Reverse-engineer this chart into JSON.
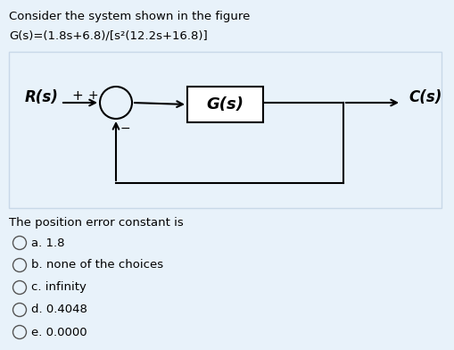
{
  "title_line1": "Consider the system shown in the figure",
  "title_line2": "G(s)=(1.8s+6.8)/[s²(12.2s+16.8)]",
  "bg_color": "#e8f2fa",
  "label_Rs": "R(s)",
  "label_Cs": "C(s)",
  "label_Gs": "G(s)",
  "plus_label": "+",
  "minus_label": "−",
  "question": "The position error constant is",
  "options": [
    "a. 1.8",
    "b. none of the choices",
    "c. infinity",
    "d. 0.4048",
    "e. 0.0000"
  ],
  "text_color": "#000000",
  "diagram_border_color": "#c8d8e8",
  "diagram_bg": "#e8f2fa"
}
